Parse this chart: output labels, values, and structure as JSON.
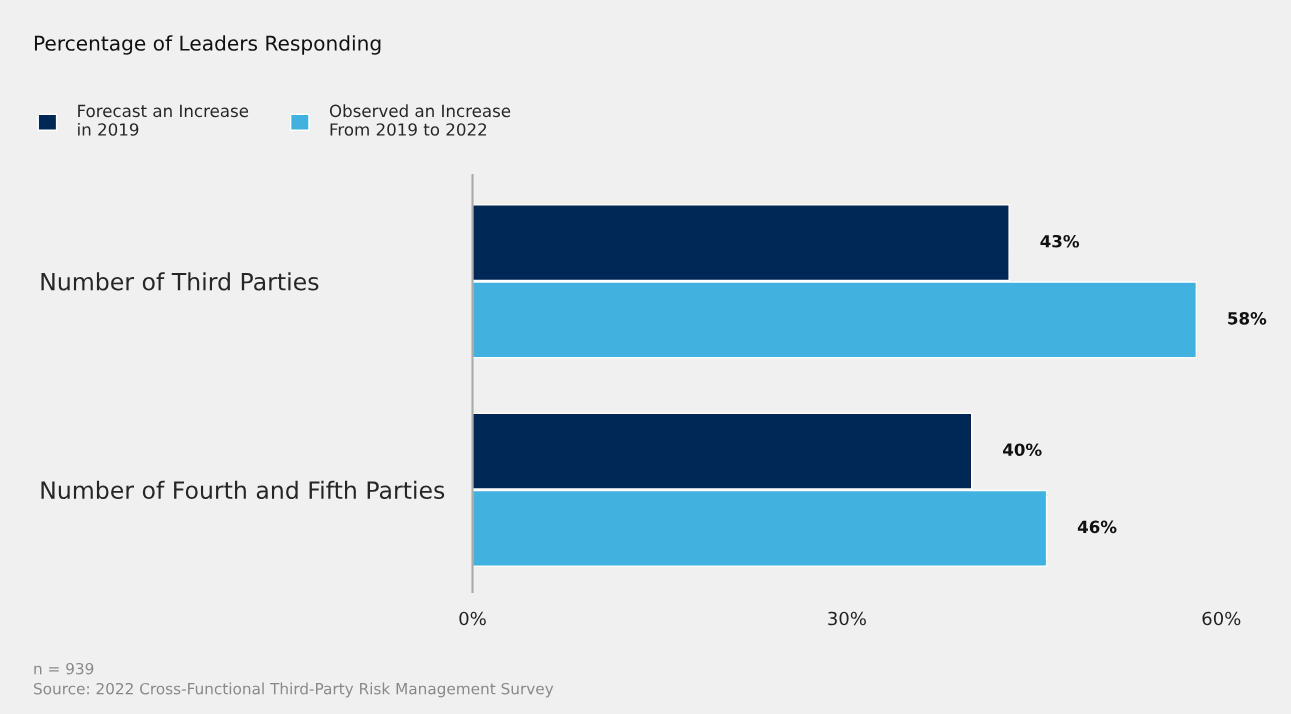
{
  "chart_data": {
    "type": "bar",
    "orientation": "horizontal",
    "title": "Percentage of Leaders Responding",
    "categories": [
      "Number of Third Parties",
      "Number of Fourth and Fifth Parties"
    ],
    "series": [
      {
        "name": "Forecast an Increase\nin 2019",
        "color": "#002856",
        "values": [
          43,
          40
        ],
        "value_labels": [
          "43%",
          "40%"
        ]
      },
      {
        "name": "Observed an Increase\nFrom 2019 to 2022",
        "color": "#41b1e0",
        "values": [
          58,
          46
        ],
        "value_labels": [
          "58%",
          "46%"
        ]
      }
    ],
    "xlim": [
      0,
      60
    ],
    "xticks": [
      {
        "value": 0,
        "label": "0%"
      },
      {
        "value": 30,
        "label": "30%"
      },
      {
        "value": 60,
        "label": "60%"
      }
    ],
    "grid": false,
    "legend": "top left",
    "annotations": [
      "n = 939",
      "Source: 2022 Cross-Functional Third-Party Risk Management Survey"
    ]
  }
}
